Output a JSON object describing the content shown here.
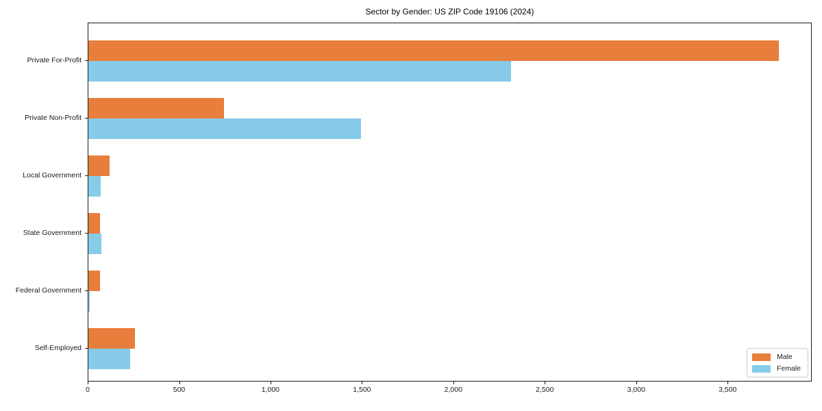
{
  "chart_data": {
    "type": "bar",
    "orientation": "horizontal",
    "title": "Sector by Gender: US ZIP Code 19106 (2024)",
    "categories": [
      "Private For-Profit",
      "Private Non-Profit",
      "Local Government",
      "State Government",
      "Federal Government",
      "Self-Employed"
    ],
    "series": [
      {
        "name": "Male",
        "color": "#e87e3b",
        "values": [
          3775,
          740,
          115,
          65,
          65,
          255
        ]
      },
      {
        "name": "Female",
        "color": "#86cbe8",
        "values": [
          2310,
          1490,
          68,
          72,
          8,
          230
        ]
      }
    ],
    "xlim": [
      0,
      3960
    ],
    "xticks": [
      0,
      500,
      1000,
      1500,
      2000,
      2500,
      3000,
      3500
    ],
    "xtick_labels": [
      "0",
      "500",
      "1,000",
      "1,500",
      "2,000",
      "2,500",
      "3,000",
      "3,500"
    ],
    "xlabel": "",
    "ylabel": "",
    "grid": false,
    "legend_position": "lower right",
    "colors": {
      "plot_border": "#1a1a1a",
      "background": "#ffffff",
      "text": "#1a1a1a"
    }
  }
}
